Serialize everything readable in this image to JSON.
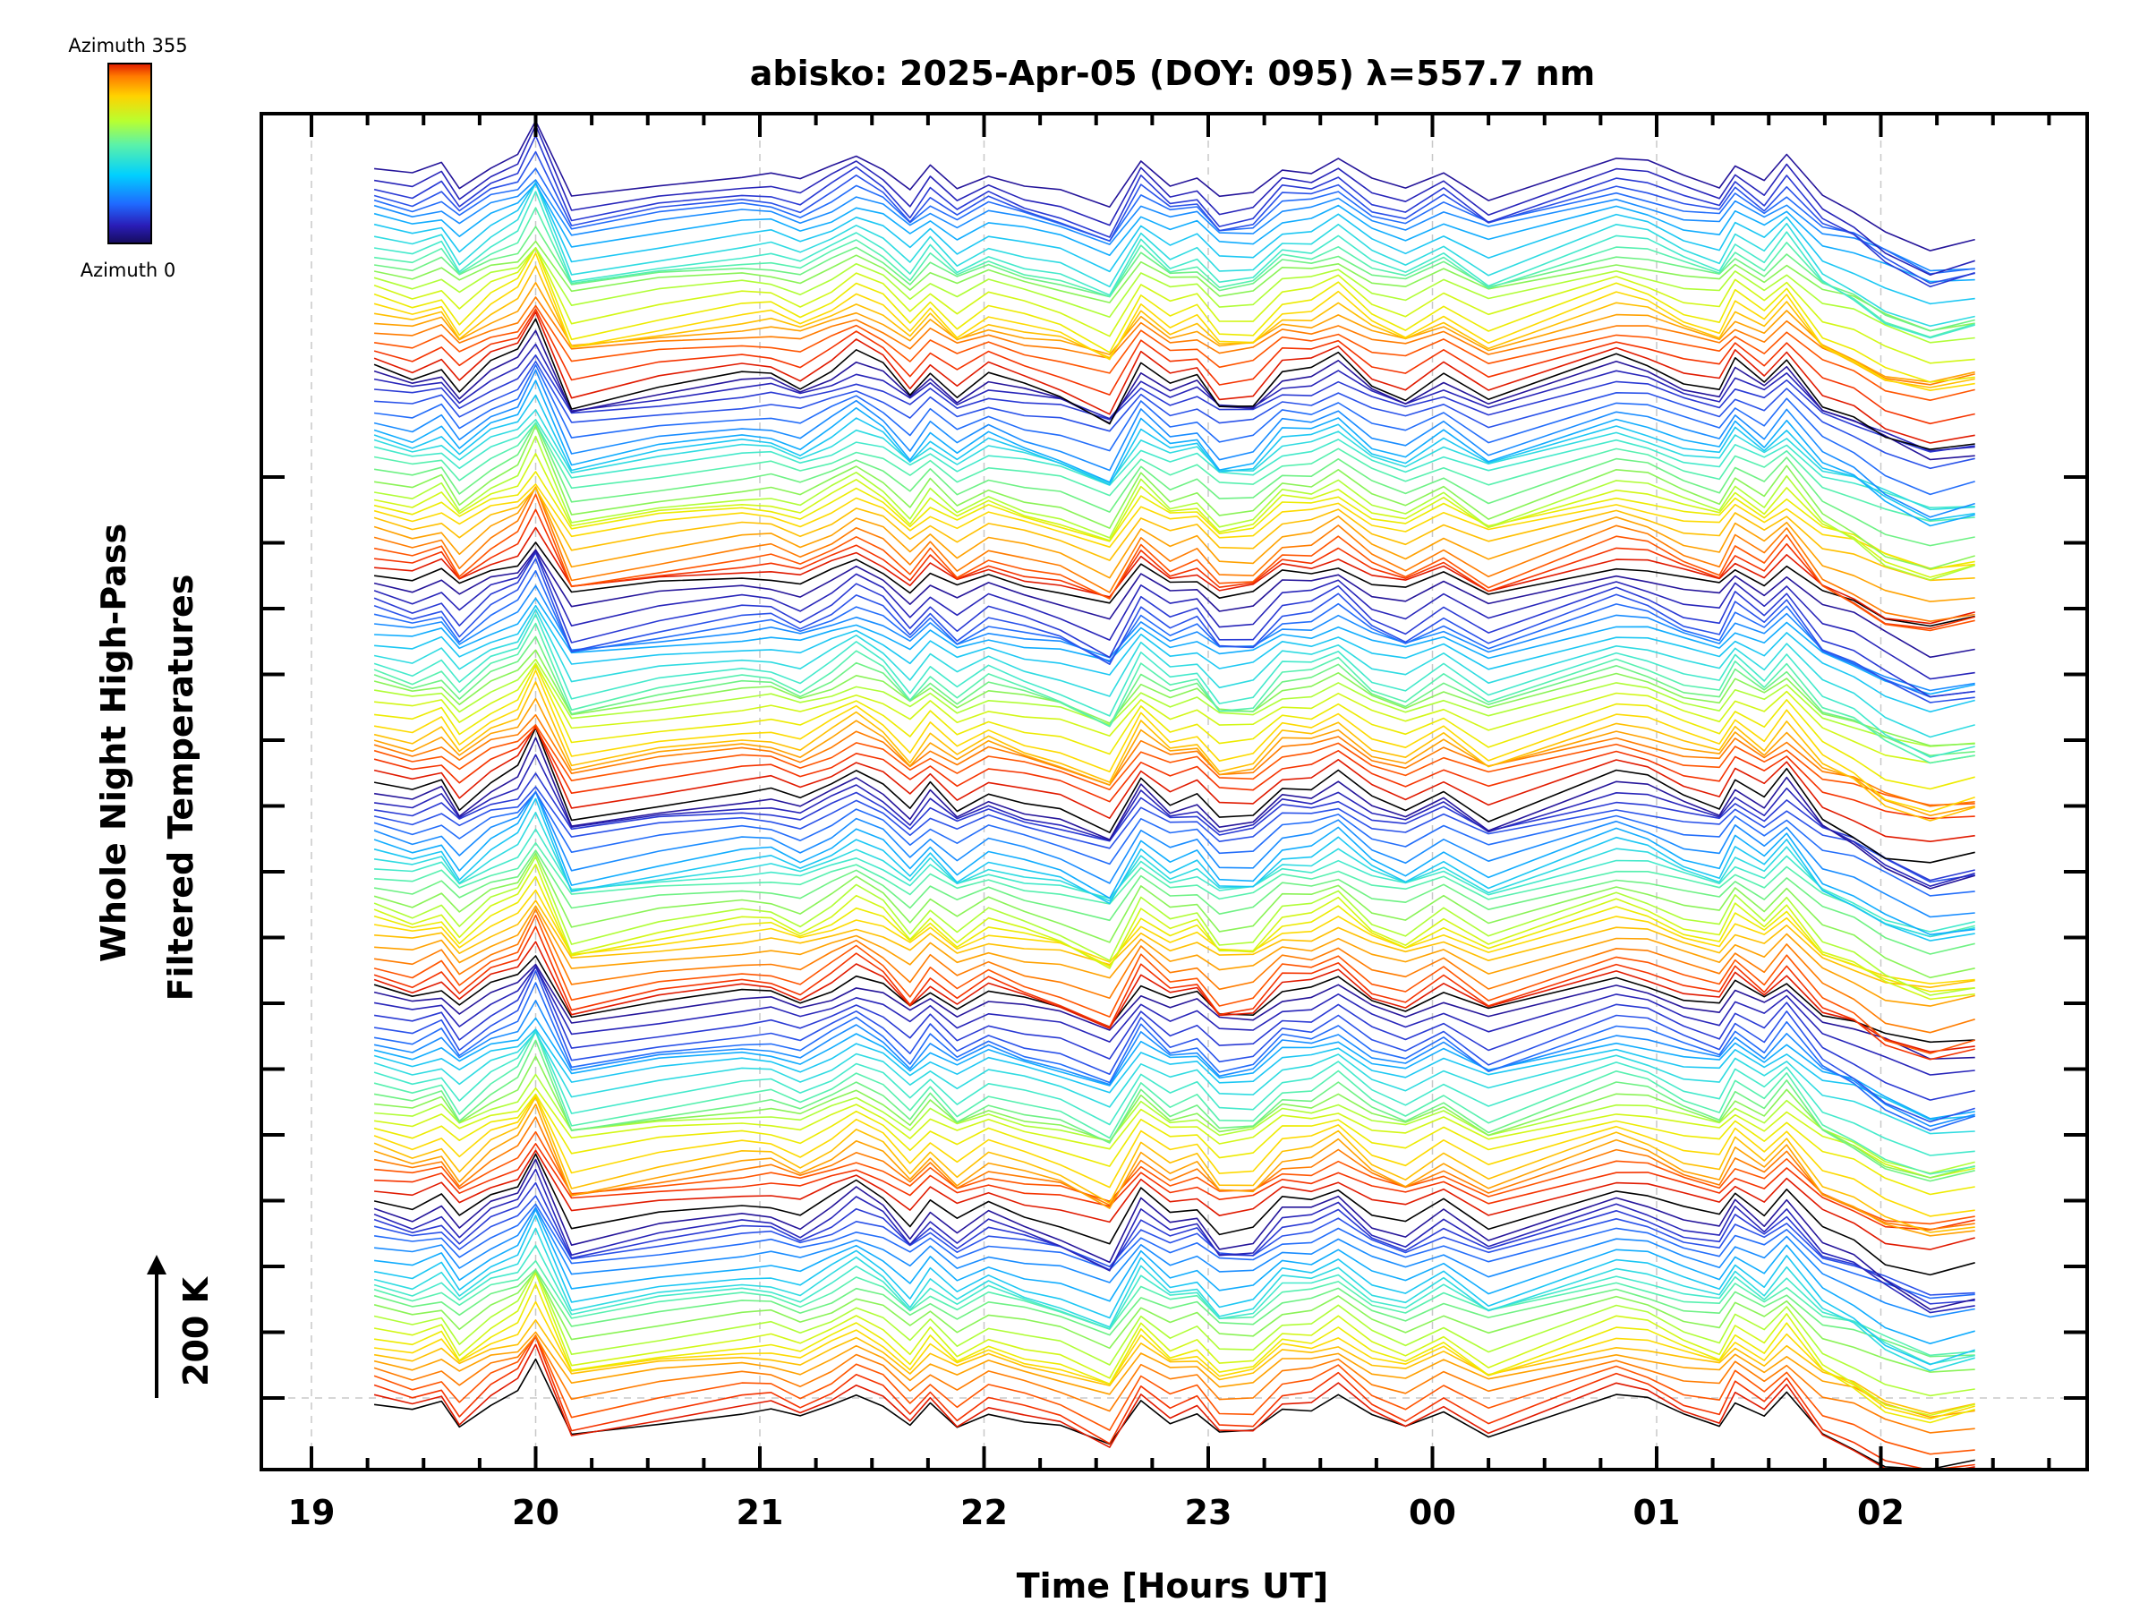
{
  "chart_data": {
    "type": "line",
    "title": "abisko: 2025-Apr-05 (DOY: 095) λ=557.7 nm",
    "xlabel": "Time [Hours UT]",
    "ylabel_lines": [
      "Whole Night High-Pass",
      "Filtered Temperatures"
    ],
    "x_ticks": [
      {
        "label": "19",
        "hour": 19
      },
      {
        "label": "20",
        "hour": 20
      },
      {
        "label": "21",
        "hour": 21
      },
      {
        "label": "22",
        "hour": 22
      },
      {
        "label": "23",
        "hour": 23
      },
      {
        "label": "00",
        "hour": 24
      },
      {
        "label": "01",
        "hour": 25
      },
      {
        "label": "02",
        "hour": 26
      }
    ],
    "xlim_hours": [
      18.77,
      26.93
    ],
    "scale_bar": {
      "label": "200 K",
      "kelvin": 200
    },
    "colorbar": {
      "top_label": "Azimuth 355",
      "bottom_label": "Azimuth 0",
      "colormap": "rainbow"
    },
    "azimuth_range_deg": [
      0,
      355
    ],
    "azimuth_step_deg": 5,
    "groups": 6,
    "lines_per_group": 24,
    "grid": "dashed, vertical at each hour",
    "profile": {
      "time_hours": [
        19.28,
        19.45,
        19.58,
        19.66,
        19.8,
        19.92,
        20.0,
        20.16,
        20.55,
        20.92,
        21.05,
        21.18,
        21.32,
        21.43,
        21.55,
        21.67,
        21.76,
        21.88,
        22.02,
        22.18,
        22.34,
        22.56,
        22.7,
        22.83,
        22.95,
        23.05,
        23.2,
        23.33,
        23.46,
        23.58,
        23.73,
        23.88,
        24.05,
        24.25,
        24.82,
        24.96,
        25.12,
        25.28,
        25.35,
        25.48,
        25.58,
        25.74,
        25.88,
        26.02,
        26.22,
        26.42
      ],
      "offset_k": [
        -10,
        -23,
        -8,
        -40,
        -6,
        10,
        53,
        -57,
        -35,
        -20,
        -19,
        -33,
        -11,
        10,
        -9,
        -45,
        -13,
        -44,
        -19,
        -34,
        -46,
        -75,
        -2,
        -33,
        -23,
        -57,
        -53,
        -14,
        -14,
        5,
        -31,
        -46,
        -17,
        -54,
        4,
        -5,
        -26,
        -38,
        -3,
        -30,
        3,
        -55,
        -73,
        -101,
        -112,
        -100
      ]
    },
    "color_bands": [
      {
        "fraction": 0.0,
        "color": "#000000"
      },
      {
        "fraction": 0.04,
        "color": "#ff3a00"
      },
      {
        "fraction": 0.5,
        "color": "#7ff5b0"
      },
      {
        "fraction": 0.78,
        "color": "#1f6aff"
      },
      {
        "fraction": 1.0,
        "color": "#25158f"
      }
    ]
  }
}
